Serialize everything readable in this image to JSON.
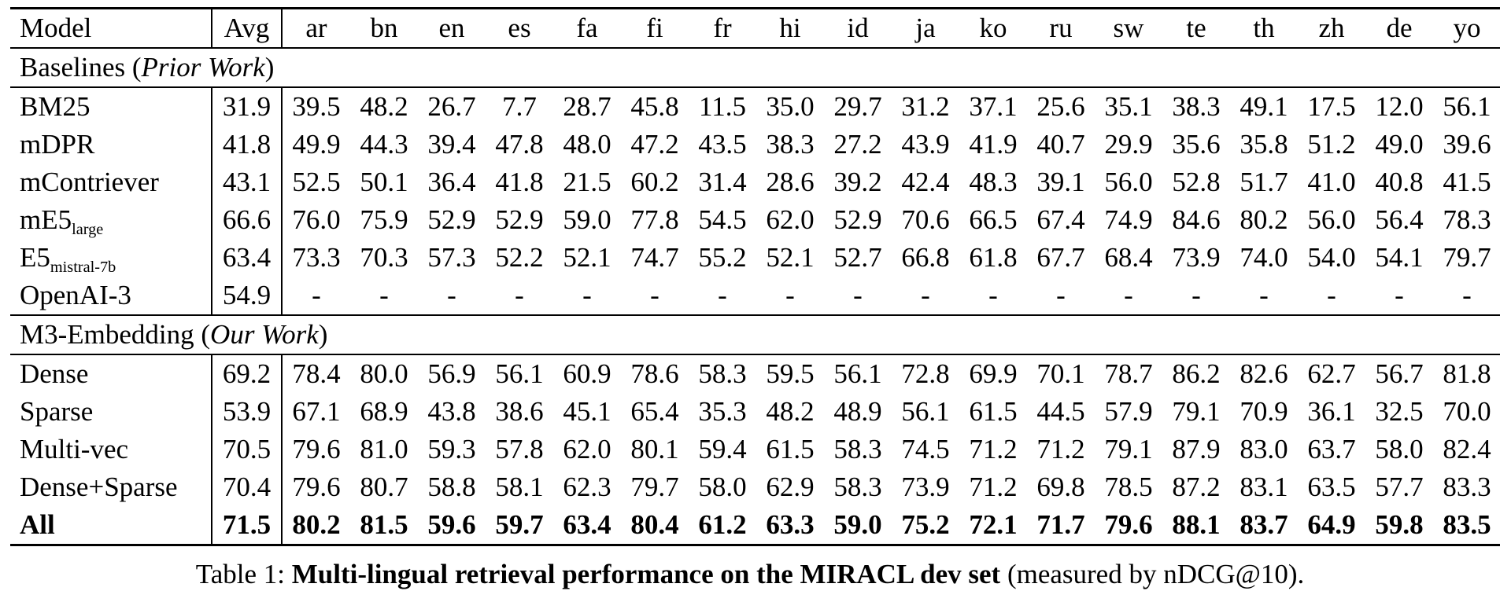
{
  "table": {
    "columns": [
      "Model",
      "Avg",
      "ar",
      "bn",
      "en",
      "es",
      "fa",
      "fi",
      "fr",
      "hi",
      "id",
      "ja",
      "ko",
      "ru",
      "sw",
      "te",
      "th",
      "zh",
      "de",
      "yo"
    ],
    "sections": [
      {
        "title_prefix": "Baselines (",
        "title_italic": "Prior Work",
        "title_suffix": ")",
        "rows": [
          {
            "model": "BM25",
            "avg": "31.9",
            "values": [
              "39.5",
              "48.2",
              "26.7",
              "7.7",
              "28.7",
              "45.8",
              "11.5",
              "35.0",
              "29.7",
              "31.2",
              "37.1",
              "25.6",
              "35.1",
              "38.3",
              "49.1",
              "17.5",
              "12.0",
              "56.1"
            ]
          },
          {
            "model": "mDPR",
            "avg": "41.8",
            "values": [
              "49.9",
              "44.3",
              "39.4",
              "47.8",
              "48.0",
              "47.2",
              "43.5",
              "38.3",
              "27.2",
              "43.9",
              "41.9",
              "40.7",
              "29.9",
              "35.6",
              "35.8",
              "51.2",
              "49.0",
              "39.6"
            ]
          },
          {
            "model": "mContriever",
            "avg": "43.1",
            "values": [
              "52.5",
              "50.1",
              "36.4",
              "41.8",
              "21.5",
              "60.2",
              "31.4",
              "28.6",
              "39.2",
              "42.4",
              "48.3",
              "39.1",
              "56.0",
              "52.8",
              "51.7",
              "41.0",
              "40.8",
              "41.5"
            ]
          },
          {
            "model": "mE5",
            "model_sub": "large",
            "avg": "66.6",
            "values": [
              "76.0",
              "75.9",
              "52.9",
              "52.9",
              "59.0",
              "77.8",
              "54.5",
              "62.0",
              "52.9",
              "70.6",
              "66.5",
              "67.4",
              "74.9",
              "84.6",
              "80.2",
              "56.0",
              "56.4",
              "78.3"
            ]
          },
          {
            "model": "E5",
            "model_sub": "mistral-7b",
            "avg": "63.4",
            "values": [
              "73.3",
              "70.3",
              "57.3",
              "52.2",
              "52.1",
              "74.7",
              "55.2",
              "52.1",
              "52.7",
              "66.8",
              "61.8",
              "67.7",
              "68.4",
              "73.9",
              "74.0",
              "54.0",
              "54.1",
              "79.7"
            ]
          },
          {
            "model": "OpenAI-3",
            "avg": "54.9",
            "values": [
              "-",
              "-",
              "-",
              "-",
              "-",
              "-",
              "-",
              "-",
              "-",
              "-",
              "-",
              "-",
              "-",
              "-",
              "-",
              "-",
              "-",
              "-"
            ]
          }
        ]
      },
      {
        "title_prefix": "M3-Embedding (",
        "title_italic": "Our Work",
        "title_suffix": ")",
        "rows": [
          {
            "model": "Dense",
            "avg": "69.2",
            "values": [
              "78.4",
              "80.0",
              "56.9",
              "56.1",
              "60.9",
              "78.6",
              "58.3",
              "59.5",
              "56.1",
              "72.8",
              "69.9",
              "70.1",
              "78.7",
              "86.2",
              "82.6",
              "62.7",
              "56.7",
              "81.8"
            ]
          },
          {
            "model": "Sparse",
            "avg": "53.9",
            "values": [
              "67.1",
              "68.9",
              "43.8",
              "38.6",
              "45.1",
              "65.4",
              "35.3",
              "48.2",
              "48.9",
              "56.1",
              "61.5",
              "44.5",
              "57.9",
              "79.1",
              "70.9",
              "36.1",
              "32.5",
              "70.0"
            ]
          },
          {
            "model": "Multi-vec",
            "avg": "70.5",
            "values": [
              "79.6",
              "81.0",
              "59.3",
              "57.8",
              "62.0",
              "80.1",
              "59.4",
              "61.5",
              "58.3",
              "74.5",
              "71.2",
              "71.2",
              "79.1",
              "87.9",
              "83.0",
              "63.7",
              "58.0",
              "82.4"
            ]
          },
          {
            "model": "Dense+Sparse",
            "avg": "70.4",
            "values": [
              "79.6",
              "80.7",
              "58.8",
              "58.1",
              "62.3",
              "79.7",
              "58.0",
              "62.9",
              "58.3",
              "73.9",
              "71.2",
              "69.8",
              "78.5",
              "87.2",
              "83.1",
              "63.5",
              "57.7",
              "83.3"
            ]
          },
          {
            "model": "All",
            "avg": "71.5",
            "bold": true,
            "values": [
              "80.2",
              "81.5",
              "59.6",
              "59.7",
              "63.4",
              "80.4",
              "61.2",
              "63.3",
              "59.0",
              "75.2",
              "72.1",
              "71.7",
              "79.6",
              "88.1",
              "83.7",
              "64.9",
              "59.8",
              "83.5"
            ]
          }
        ]
      }
    ]
  },
  "caption": {
    "prefix": "Table 1: ",
    "bold": "Multi-lingual retrieval performance on the MIRACL dev set",
    "suffix": " (measured by nDCG@10)."
  }
}
